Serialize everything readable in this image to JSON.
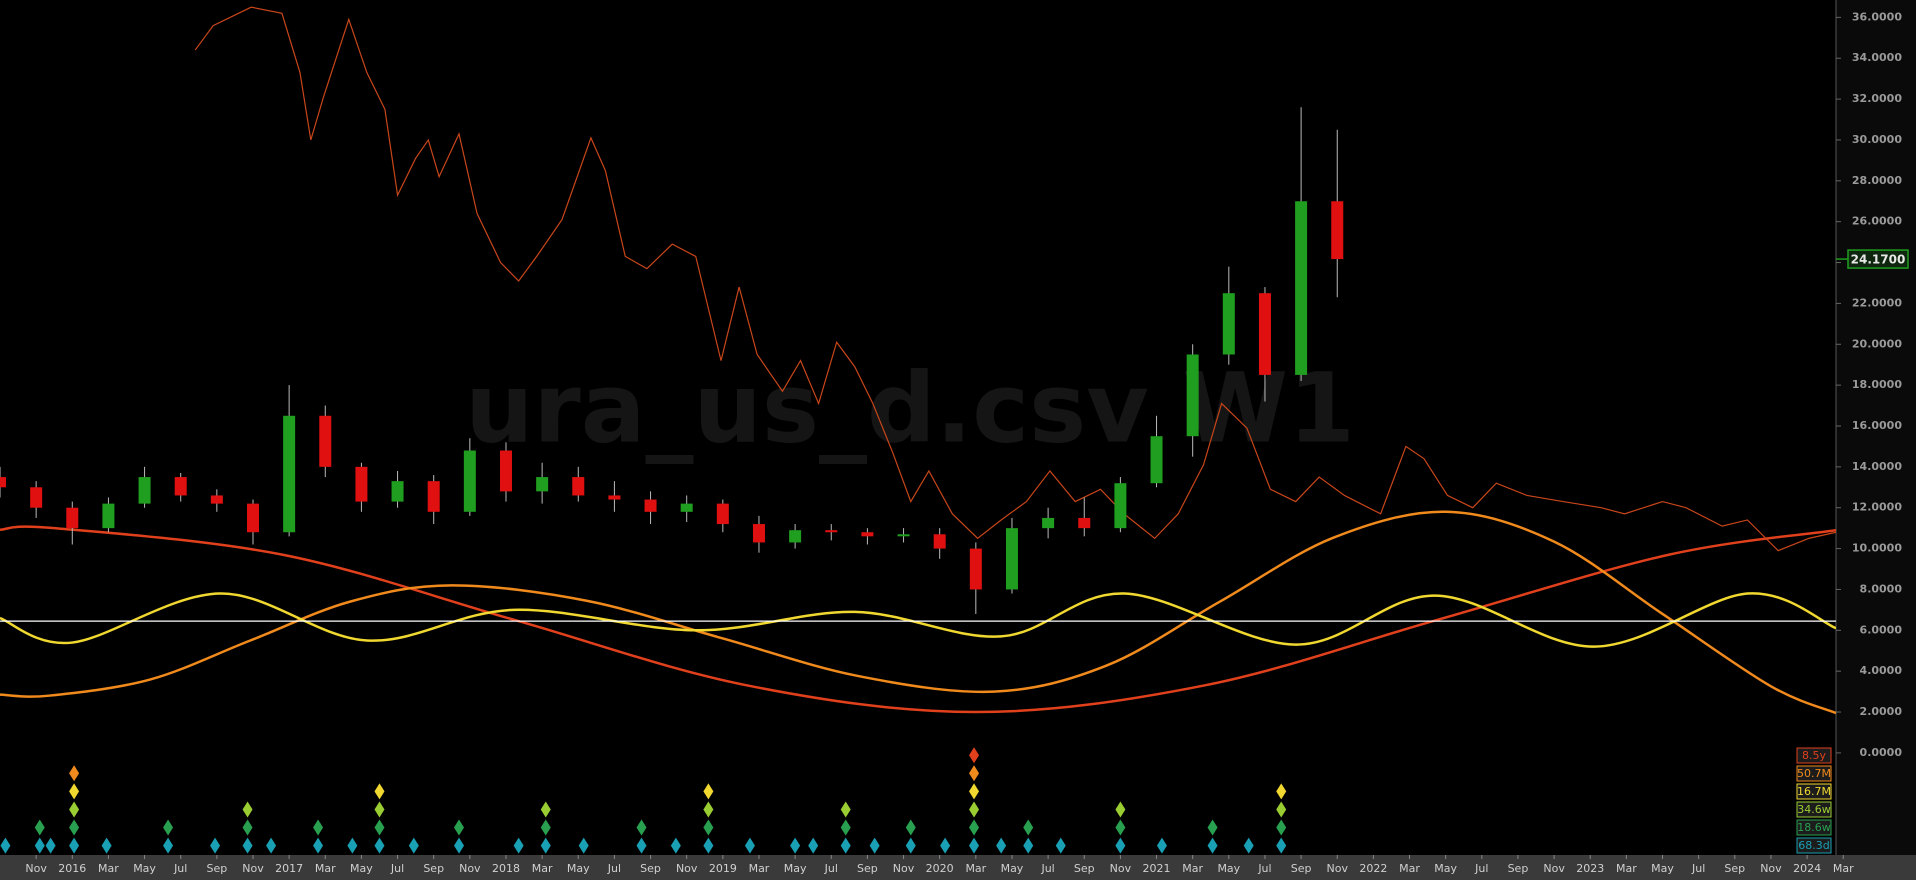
{
  "chart_data": {
    "type": "candlestick",
    "title": "ura_us_d.csv W1",
    "x": [
      0,
      2,
      4,
      6,
      8,
      10,
      12,
      14,
      16,
      18,
      20,
      22,
      24,
      26,
      28,
      30,
      32,
      34,
      36,
      38,
      40,
      42,
      44,
      46,
      48,
      50,
      52,
      54,
      56,
      58,
      60,
      62,
      64,
      66,
      68,
      70,
      72,
      74
    ],
    "open": [
      13.5,
      13,
      12,
      11,
      12.2,
      13.5,
      12.6,
      12.2,
      10.8,
      16.5,
      14,
      12.3,
      13.3,
      11.8,
      14.8,
      12.8,
      13.5,
      12.6,
      12.4,
      11.8,
      12.2,
      11.2,
      10.3,
      10.9,
      10.8,
      10.6,
      10.7,
      10,
      8,
      11,
      11.5,
      11,
      13.2,
      15.5,
      19.5,
      22.5,
      18.5,
      27
    ],
    "high": [
      14,
      13.3,
      12.3,
      12.5,
      14,
      13.7,
      12.9,
      12.4,
      18,
      17,
      14.2,
      13.8,
      13.6,
      15.4,
      15.2,
      14.2,
      14,
      13.3,
      12.8,
      12.6,
      12.4,
      11.6,
      11.2,
      11.2,
      11,
      11,
      11,
      10.3,
      11.5,
      12,
      12.5,
      13.5,
      16.5,
      20,
      23.8,
      22.8,
      31.6,
      30.5
    ],
    "low": [
      12.5,
      11.5,
      10.2,
      10.8,
      12,
      12.3,
      11.8,
      10.2,
      10.6,
      13.5,
      11.8,
      12,
      11.2,
      11.6,
      12.3,
      12.2,
      12.3,
      11.8,
      11.2,
      11.3,
      10.8,
      9.8,
      10,
      10.4,
      10.2,
      10.3,
      9.5,
      6.8,
      7.8,
      10.5,
      10.6,
      10.8,
      13,
      14.5,
      19,
      17.2,
      18.2,
      22.3
    ],
    "close": [
      13,
      12,
      11,
      12.2,
      13.5,
      12.6,
      12.2,
      10.8,
      16.5,
      14,
      12.3,
      13.3,
      11.8,
      14.8,
      12.8,
      13.5,
      12.6,
      12.4,
      11.8,
      12.2,
      11.2,
      10.3,
      10.9,
      10.8,
      10.6,
      10.7,
      10,
      8,
      11,
      11.5,
      11,
      13.2,
      15.5,
      19.5,
      22.5,
      18.5,
      27,
      24.17
    ],
    "up_color": "#1f9e1f",
    "down_color": "#e01010",
    "last_price": {
      "value": 24.17,
      "label": "24.1700"
    },
    "overlay": {
      "color": "#c8461a",
      "x": [
        10.8,
        11.8,
        13.9,
        15.6,
        16.6,
        17.2,
        17.9,
        19.3,
        20.3,
        21.3,
        22,
        23,
        23.7,
        24.3,
        25.4,
        26.4,
        27.7,
        28.7,
        29.7,
        31.1,
        32.7,
        33.5,
        34.6,
        35.8,
        37.2,
        38.5,
        39.9,
        40.9,
        41.9,
        43.3,
        44.3,
        45.3,
        46.3,
        47.3,
        48.3,
        49.4,
        50.4,
        51.4,
        52.7,
        54.1,
        55.4,
        56.8,
        58.1,
        59.5,
        60.9,
        62.2,
        63.9,
        65.2,
        66.6,
        67.6,
        69,
        70.3,
        71.7,
        73,
        74.4,
        76.4,
        77.8,
        78.8,
        80.1,
        81.5,
        82.8,
        84.5,
        86.5,
        88.6,
        89.9,
        92,
        93.3,
        95.3,
        96.7,
        98.4,
        100.1,
        101.6
      ],
      "values": [
        34.4,
        35.6,
        36.5,
        36.2,
        33.3,
        30,
        32.1,
        35.9,
        33.3,
        31.5,
        27.3,
        29.1,
        30,
        28.2,
        30.3,
        26.4,
        24,
        23.1,
        24.3,
        26.1,
        30.1,
        28.5,
        24.3,
        23.7,
        24.9,
        24.3,
        19.2,
        22.8,
        19.5,
        17.7,
        19.2,
        17.1,
        20.1,
        18.9,
        17.1,
        14.7,
        12.3,
        13.8,
        11.7,
        10.5,
        11.4,
        12.3,
        13.8,
        12.3,
        12.9,
        11.7,
        10.5,
        11.7,
        14.1,
        17.1,
        15.9,
        12.9,
        12.3,
        13.5,
        12.6,
        11.7,
        15,
        14.4,
        12.6,
        12,
        13.2,
        12.6,
        12.3,
        12,
        11.7,
        12.3,
        12,
        11.1,
        11.4,
        9.9,
        10.5,
        10.8
      ]
    },
    "cycles": [
      {
        "name": "8.5y",
        "color": "#e0401c",
        "x": [
          0,
          3,
          15.75,
          28.5,
          41.25,
          54,
          66.75,
          79.5,
          92.25,
          101.6
        ],
        "values": [
          10.92,
          11,
          9.68,
          6.5,
          3.32,
          2,
          3.32,
          6.5,
          9.68,
          10.9
        ]
      },
      {
        "name": "50.7M",
        "color": "#f08a1c",
        "x": [
          0,
          2.7,
          8.3,
          13.85,
          19.4,
          25,
          32.5,
          40,
          47.5,
          55,
          61.25,
          67.5,
          73.75,
          80,
          86,
          92,
          98,
          101.6
        ],
        "values": [
          2.85,
          2.8,
          3.59,
          5.5,
          7.41,
          8.2,
          7.44,
          5.6,
          3.76,
          3,
          4.28,
          7.4,
          10.52,
          11.8,
          10.34,
          6.8,
          3.26,
          1.95
        ]
      },
      {
        "name": "16.7M",
        "color": "#f0d830",
        "x": [
          0,
          4,
          12.2,
          20.3,
          28.4,
          38.5,
          47.3,
          55.4,
          62.2,
          71.7,
          79.4,
          88.2,
          96.7,
          101.6
        ],
        "values": [
          6.6,
          5.4,
          7.8,
          5.5,
          7,
          6,
          6.9,
          5.7,
          7.8,
          5.3,
          7.7,
          5.2,
          7.8,
          6.1
        ]
      },
      {
        "name": "34.6w",
        "color": "#9acd32"
      },
      {
        "name": "18.6w",
        "color": "#28a050"
      },
      {
        "name": "68.3d",
        "color": "#1aa0b4"
      }
    ],
    "reference_line": {
      "value": 6.45,
      "color": "#ffffff"
    },
    "cycle_troughs": {
      "x": [
        0.3,
        2.2,
        2.8,
        4.1,
        5.9,
        9.3,
        11.9,
        13.7,
        15,
        17.6,
        19.5,
        21,
        22.9,
        25.4,
        28.7,
        30.2,
        32.3,
        35.5,
        37.4,
        39.2,
        41.5,
        44,
        45,
        46.8,
        48.4,
        50.4,
        52.3,
        53.9,
        55.4,
        56.9,
        58.7,
        62,
        64.3,
        67.1,
        69.1,
        70.9
      ],
      "levels": [
        1,
        2,
        1,
        5,
        1,
        2,
        1,
        3,
        1,
        2,
        1,
        4,
        1,
        2,
        1,
        3,
        1,
        2,
        1,
        4,
        1,
        1,
        1,
        3,
        1,
        2,
        1,
        6,
        1,
        2,
        1,
        3,
        1,
        2,
        1,
        4
      ]
    },
    "xlim": [
      0,
      101.6
    ],
    "xticks": [
      {
        "value": 2,
        "label": "Nov"
      },
      {
        "value": 4,
        "label": "2016"
      },
      {
        "value": 6,
        "label": "Mar"
      },
      {
        "value": 8,
        "label": "May"
      },
      {
        "value": 10,
        "label": "Jul"
      },
      {
        "value": 12,
        "label": "Sep"
      },
      {
        "value": 14,
        "label": "Nov"
      },
      {
        "value": 16,
        "label": "2017"
      },
      {
        "value": 18,
        "label": "Mar"
      },
      {
        "value": 20,
        "label": "May"
      },
      {
        "value": 22,
        "label": "Jul"
      },
      {
        "value": 24,
        "label": "Sep"
      },
      {
        "value": 26,
        "label": "Nov"
      },
      {
        "value": 28,
        "label": "2018"
      },
      {
        "value": 30,
        "label": "Mar"
      },
      {
        "value": 32,
        "label": "May"
      },
      {
        "value": 34,
        "label": "Jul"
      },
      {
        "value": 36,
        "label": "Sep"
      },
      {
        "value": 38,
        "label": "Nov"
      },
      {
        "value": 40,
        "label": "2019"
      },
      {
        "value": 42,
        "label": "Mar"
      },
      {
        "value": 44,
        "label": "May"
      },
      {
        "value": 46,
        "label": "Jul"
      },
      {
        "value": 48,
        "label": "Sep"
      },
      {
        "value": 50,
        "label": "Nov"
      },
      {
        "value": 52,
        "label": "2020"
      },
      {
        "value": 54,
        "label": "Mar"
      },
      {
        "value": 56,
        "label": "May"
      },
      {
        "value": 58,
        "label": "Jul"
      },
      {
        "value": 60,
        "label": "Sep"
      },
      {
        "value": 62,
        "label": "Nov"
      },
      {
        "value": 64,
        "label": "2021"
      },
      {
        "value": 66,
        "label": "Mar"
      },
      {
        "value": 68,
        "label": "May"
      },
      {
        "value": 70,
        "label": "Jul"
      },
      {
        "value": 72,
        "label": "Sep"
      },
      {
        "value": 74,
        "label": "Nov"
      },
      {
        "value": 76,
        "label": "2022"
      },
      {
        "value": 78,
        "label": "Mar"
      },
      {
        "value": 80,
        "label": "May"
      },
      {
        "value": 82,
        "label": "Jul"
      },
      {
        "value": 84,
        "label": "Sep"
      },
      {
        "value": 86,
        "label": "Nov"
      },
      {
        "value": 88,
        "label": "2023"
      },
      {
        "value": 90,
        "label": "Mar"
      },
      {
        "value": 92,
        "label": "May"
      },
      {
        "value": 94,
        "label": "Jul"
      },
      {
        "value": 96,
        "label": "Sep"
      },
      {
        "value": 98,
        "label": "Nov"
      },
      {
        "value": 100,
        "label": "2024"
      },
      {
        "value": 102,
        "label": "Mar"
      }
    ],
    "ylim": [
      -0.25,
      36.85
    ],
    "yticks": [
      {
        "value": 0,
        "label": "0.0000"
      },
      {
        "value": 2,
        "label": "2.0000"
      },
      {
        "value": 4,
        "label": "4.0000"
      },
      {
        "value": 6,
        "label": "6.0000"
      },
      {
        "value": 8,
        "label": "8.0000"
      },
      {
        "value": 10,
        "label": "10.0000"
      },
      {
        "value": 12,
        "label": "12.0000"
      },
      {
        "value": 14,
        "label": "14.0000"
      },
      {
        "value": 16,
        "label": "16.0000"
      },
      {
        "value": 18,
        "label": "18.0000"
      },
      {
        "value": 20,
        "label": "20.0000"
      },
      {
        "value": 22,
        "label": "22.0000"
      },
      {
        "value": 24,
        "label": "24.0000"
      },
      {
        "value": 26,
        "label": "26.0000"
      },
      {
        "value": 28,
        "label": "28.0000"
      },
      {
        "value": 30,
        "label": "30.0000"
      },
      {
        "value": 32,
        "label": "32.0000"
      },
      {
        "value": 34,
        "label": "34.0000"
      },
      {
        "value": 36,
        "label": "36.0000"
      }
    ]
  }
}
